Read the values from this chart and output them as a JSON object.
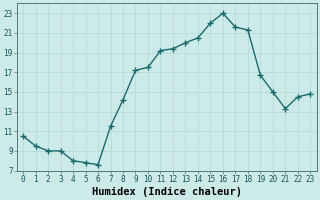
{
  "x": [
    0,
    1,
    2,
    3,
    4,
    5,
    6,
    7,
    8,
    9,
    10,
    11,
    12,
    13,
    14,
    15,
    16,
    17,
    18,
    19,
    20,
    21,
    22,
    23
  ],
  "y": [
    10.5,
    9.5,
    9.0,
    9.0,
    8.0,
    7.8,
    7.6,
    11.5,
    14.2,
    17.2,
    17.5,
    19.2,
    19.4,
    20.0,
    20.5,
    22.0,
    23.0,
    21.6,
    21.3,
    16.7,
    15.0,
    13.3,
    14.5,
    14.8
  ],
  "line_color": "#1a6b6b",
  "marker": "+",
  "marker_size": 4,
  "background_color": "#cceae8",
  "grid_color": "#b0d8d5",
  "xlabel": "Humidex (Indice chaleur)",
  "xlabel_fontsize": 7.5,
  "xlim": [
    -0.5,
    23.5
  ],
  "ylim": [
    7,
    24
  ],
  "yticks": [
    7,
    9,
    11,
    13,
    15,
    17,
    19,
    21,
    23
  ],
  "xticks": [
    0,
    1,
    2,
    3,
    4,
    5,
    6,
    7,
    8,
    9,
    10,
    11,
    12,
    13,
    14,
    15,
    16,
    17,
    18,
    19,
    20,
    21,
    22,
    23
  ],
  "tick_fontsize": 5.5,
  "line_width": 1.0
}
